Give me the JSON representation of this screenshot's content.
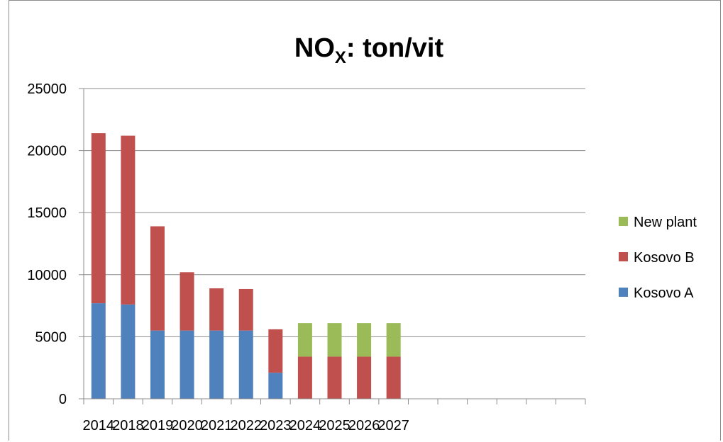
{
  "chart_data": {
    "type": "bar",
    "stacked": true,
    "title": "NO",
    "title_subscript": "X",
    "title_suffix": ":  ton/vit",
    "xlabel": "",
    "ylabel": "",
    "categories": [
      "2014",
      "2018",
      "2019",
      "2020",
      "2021",
      "2022",
      "2023",
      "2024",
      "2025",
      "2026",
      "2027",
      "",
      "",
      "",
      "",
      "",
      ""
    ],
    "series": [
      {
        "name": "Kosovo A",
        "color": "#4f81bd",
        "values": [
          7700,
          7600,
          5500,
          5500,
          5500,
          5500,
          2100,
          0,
          0,
          0,
          0,
          0,
          0,
          0,
          0,
          0,
          0
        ]
      },
      {
        "name": "Kosovo B",
        "color": "#c0504d",
        "values": [
          13700,
          13600,
          8400,
          4700,
          3400,
          3350,
          3500,
          3400,
          3400,
          3400,
          3400,
          0,
          0,
          0,
          0,
          0,
          0
        ]
      },
      {
        "name": "New plant",
        "color": "#9bbb59",
        "values": [
          0,
          0,
          0,
          0,
          0,
          0,
          0,
          2700,
          2700,
          2700,
          2700,
          0,
          0,
          0,
          0,
          0,
          0
        ]
      }
    ],
    "ylim": [
      0,
      25000
    ],
    "yticks": [
      "0",
      "5000",
      "10000",
      "15000",
      "20000",
      "25000"
    ],
    "grid": true,
    "legend_position": "right"
  }
}
